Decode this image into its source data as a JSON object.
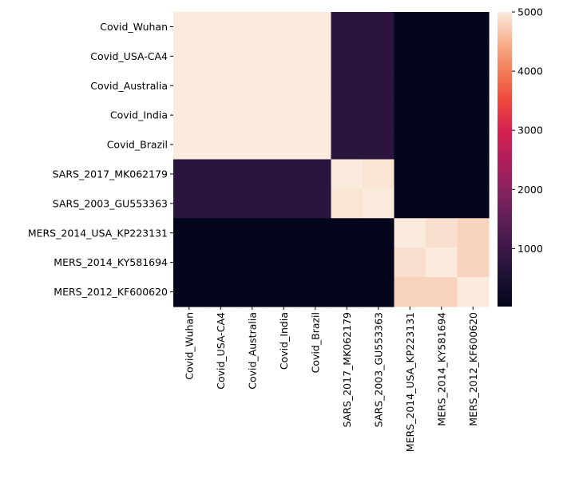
{
  "chart_data": {
    "type": "heatmap",
    "title": "",
    "xlabel": "",
    "ylabel": "",
    "rows": [
      "Covid_Wuhan",
      "Covid_USA-CA4",
      "Covid_Australia",
      "Covid_India",
      "Covid_Brazil",
      "SARS_2017_MK062179",
      "SARS_2003_GU553363",
      "MERS_2014_USA_KP223131",
      "MERS_2014_KY581694",
      "MERS_2012_KF600620"
    ],
    "columns": [
      "Covid_Wuhan",
      "Covid_USA-CA4",
      "Covid_Australia",
      "Covid_India",
      "Covid_Brazil",
      "SARS_2017_MK062179",
      "SARS_2003_GU553363",
      "MERS_2014_USA_KP223131",
      "MERS_2014_KY581694",
      "MERS_2012_KF600620"
    ],
    "values": [
      [
        5000,
        5000,
        5000,
        5000,
        5000,
        750,
        750,
        20,
        20,
        20
      ],
      [
        5000,
        5000,
        5000,
        5000,
        5000,
        750,
        750,
        20,
        20,
        20
      ],
      [
        5000,
        5000,
        5000,
        5000,
        5000,
        750,
        750,
        20,
        20,
        20
      ],
      [
        5000,
        5000,
        5000,
        5000,
        5000,
        750,
        750,
        20,
        20,
        20
      ],
      [
        5000,
        5000,
        5000,
        5000,
        5000,
        750,
        750,
        20,
        20,
        20
      ],
      [
        750,
        750,
        750,
        750,
        750,
        5000,
        4950,
        20,
        20,
        20
      ],
      [
        750,
        750,
        750,
        750,
        750,
        4950,
        5000,
        20,
        20,
        20
      ],
      [
        20,
        20,
        20,
        20,
        20,
        20,
        20,
        5000,
        4900,
        4800
      ],
      [
        20,
        20,
        20,
        20,
        20,
        20,
        20,
        4900,
        5000,
        4800
      ],
      [
        20,
        20,
        20,
        20,
        20,
        20,
        20,
        4800,
        4800,
        5000
      ]
    ],
    "vmin": 20,
    "vmax": 5000,
    "colormap": "rocket",
    "colorbar": {
      "ticks": [
        1000,
        2000,
        3000,
        4000,
        5000
      ],
      "tick_labels": [
        "1000",
        "2000",
        "3000",
        "4000",
        "5000"
      ],
      "position": "right"
    },
    "grid": false
  }
}
